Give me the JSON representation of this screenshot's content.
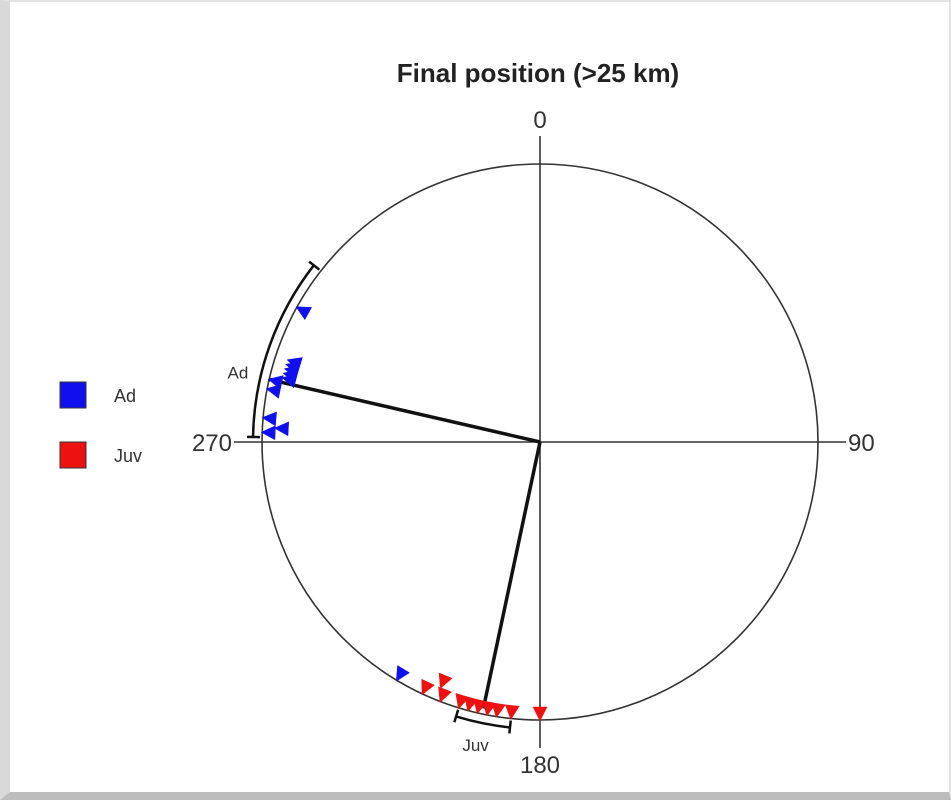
{
  "chart_data": {
    "type": "circular-scatter",
    "title": "Final position (>25 km)",
    "axis_ticks": [
      "0",
      "90",
      "180",
      "270"
    ],
    "legend": [
      {
        "label": "Ad",
        "color": "#1010ee"
      },
      {
        "label": "Juv",
        "color": "#ee1111"
      }
    ],
    "series": [
      {
        "name": "Ad",
        "color": "#1010ee",
        "directions_deg": [
          272,
          273,
          275,
          281,
          283,
          284,
          285,
          286,
          287,
          288,
          299,
          211
        ]
      },
      {
        "name": "Juv",
        "color": "#ee1111",
        "directions_deg": [
          180,
          186,
          189,
          191,
          193,
          195,
          197,
          201,
          202,
          205
        ]
      }
    ],
    "mean_vectors": [
      {
        "group": "Ad",
        "label": "Ad",
        "angle_deg": 283,
        "length": 1.0,
        "arc_deg": [
          271,
          308
        ]
      },
      {
        "group": "Juv",
        "label": "Juv",
        "angle_deg": 192,
        "length": 0.98,
        "arc_deg": [
          186,
          197
        ]
      }
    ]
  }
}
